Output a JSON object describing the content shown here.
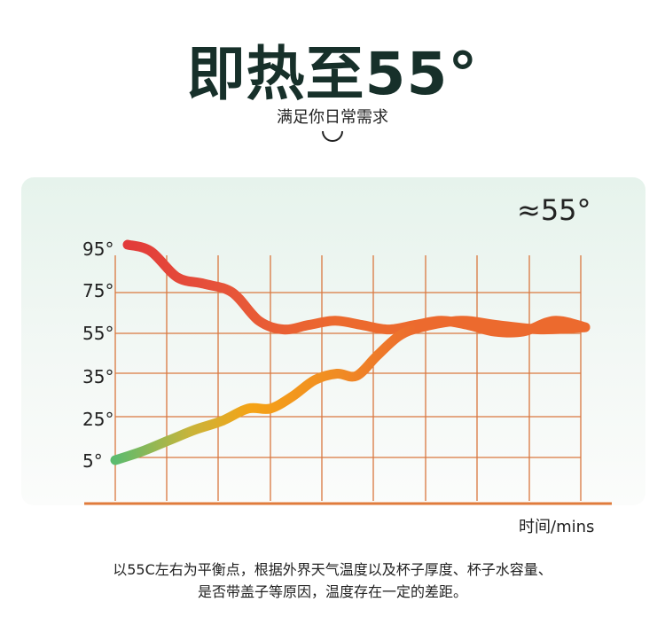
{
  "header": {
    "title": "即热至55°",
    "subtitle": "满足你日常需求"
  },
  "chart_data": {
    "type": "line",
    "title": "",
    "xlabel": "时间/mins",
    "ylabel": "",
    "y_tick_labels": [
      "95°",
      "75°",
      "55°",
      "35°",
      "25°",
      "5°"
    ],
    "annotation": "≈55°",
    "grid": true,
    "colors": {
      "grid": "#d9773f",
      "axis": "#e07b3c",
      "hot": "#e23a3a",
      "warm": "#ec6a2e",
      "cold": "#5cbb6e",
      "mid": "#f5a316"
    },
    "series": [
      {
        "values": [
          95,
          92,
          80,
          77,
          73,
          60,
          56,
          58,
          60,
          58,
          56,
          58,
          60,
          58,
          55,
          55,
          60,
          57
        ]
      },
      {
        "values": [
          5,
          9,
          14,
          19,
          23,
          27,
          27,
          30,
          34,
          36,
          35,
          44,
          53,
          57,
          60,
          58,
          56,
          57
        ]
      }
    ]
  },
  "footer": {
    "note_lines": [
      "以55C左右为平衡点，根据外界天气温度以及杯子厚度、杯子水容量、",
      "是否带盖子等原因，温度存在一定的差距。"
    ]
  }
}
